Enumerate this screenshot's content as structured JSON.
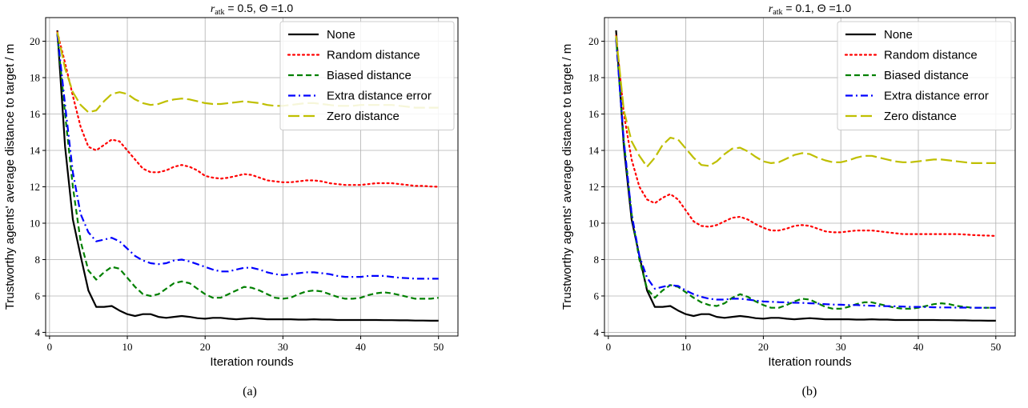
{
  "chart_data": [
    {
      "type": "line",
      "title": "r_atk = 0.5, Θ =1.0",
      "title_parts": {
        "var": "r",
        "sub": "atk",
        "rest": " = 0.5, Θ =1.0"
      },
      "xlabel": "Iteration rounds",
      "ylabel": "Trustworthy agents' average distance to target / m",
      "caption": "(a)",
      "xlim": [
        -0.5,
        52.5
      ],
      "ylim": [
        3.8,
        21.3
      ],
      "xticks": [
        0,
        10,
        20,
        30,
        40,
        50
      ],
      "yticks": [
        4,
        6,
        8,
        10,
        12,
        14,
        16,
        18,
        20
      ],
      "grid": true,
      "legend_position": "top-right",
      "x": [
        1,
        2,
        3,
        4,
        5,
        6,
        7,
        8,
        9,
        10,
        11,
        12,
        13,
        14,
        15,
        16,
        17,
        18,
        19,
        20,
        21,
        22,
        23,
        24,
        25,
        26,
        27,
        28,
        29,
        30,
        31,
        32,
        33,
        34,
        35,
        36,
        37,
        38,
        39,
        40,
        41,
        42,
        43,
        44,
        45,
        46,
        47,
        48,
        49,
        50
      ],
      "series": [
        {
          "name": "None",
          "color": "#000000",
          "dash": "solid",
          "values": [
            20.6,
            14.2,
            10.2,
            8.2,
            6.3,
            5.4,
            5.4,
            5.45,
            5.2,
            5.0,
            4.9,
            5.0,
            5.0,
            4.85,
            4.8,
            4.85,
            4.9,
            4.85,
            4.78,
            4.75,
            4.8,
            4.8,
            4.75,
            4.72,
            4.75,
            4.78,
            4.75,
            4.72,
            4.72,
            4.72,
            4.72,
            4.7,
            4.7,
            4.72,
            4.7,
            4.7,
            4.68,
            4.68,
            4.68,
            4.68,
            4.68,
            4.68,
            4.67,
            4.67,
            4.66,
            4.66,
            4.65,
            4.65,
            4.64,
            4.64
          ]
        },
        {
          "name": "Random distance",
          "color": "#ff0000",
          "dash": "dotted",
          "values": [
            20.5,
            18.8,
            17.0,
            15.3,
            14.2,
            14.0,
            14.3,
            14.6,
            14.5,
            14.0,
            13.5,
            13.0,
            12.8,
            12.8,
            12.9,
            13.1,
            13.2,
            13.1,
            12.9,
            12.6,
            12.5,
            12.45,
            12.5,
            12.6,
            12.7,
            12.65,
            12.5,
            12.35,
            12.3,
            12.25,
            12.25,
            12.3,
            12.35,
            12.35,
            12.3,
            12.2,
            12.15,
            12.1,
            12.1,
            12.1,
            12.15,
            12.2,
            12.2,
            12.2,
            12.15,
            12.1,
            12.05,
            12.05,
            12.02,
            12.0
          ]
        },
        {
          "name": "Biased distance",
          "color": "#008000",
          "dash": "dashed",
          "values": [
            20.4,
            16.0,
            12.0,
            9.0,
            7.4,
            6.9,
            7.3,
            7.6,
            7.5,
            7.0,
            6.5,
            6.1,
            6.0,
            6.1,
            6.4,
            6.7,
            6.8,
            6.7,
            6.4,
            6.1,
            5.9,
            5.9,
            6.1,
            6.3,
            6.5,
            6.45,
            6.3,
            6.1,
            5.9,
            5.85,
            5.9,
            6.1,
            6.25,
            6.3,
            6.25,
            6.1,
            5.95,
            5.85,
            5.85,
            5.9,
            6.05,
            6.15,
            6.2,
            6.15,
            6.05,
            5.95,
            5.85,
            5.85,
            5.85,
            5.9
          ]
        },
        {
          "name": "Extra distance error",
          "color": "#0000ff",
          "dash": "dashdot",
          "values": [
            20.4,
            16.5,
            12.8,
            10.5,
            9.5,
            9.0,
            9.1,
            9.2,
            9.0,
            8.6,
            8.2,
            7.95,
            7.8,
            7.75,
            7.8,
            7.95,
            8.0,
            7.9,
            7.75,
            7.6,
            7.45,
            7.35,
            7.35,
            7.45,
            7.55,
            7.55,
            7.45,
            7.3,
            7.2,
            7.15,
            7.2,
            7.25,
            7.3,
            7.3,
            7.25,
            7.2,
            7.1,
            7.05,
            7.05,
            7.05,
            7.1,
            7.1,
            7.1,
            7.05,
            7.0,
            6.98,
            6.95,
            6.95,
            6.95,
            6.95
          ]
        },
        {
          "name": "Zero distance",
          "color": "#bfbf00",
          "dash": "longdash",
          "values": [
            20.5,
            18.5,
            17.2,
            16.5,
            16.1,
            16.2,
            16.7,
            17.1,
            17.2,
            17.1,
            16.8,
            16.6,
            16.5,
            16.55,
            16.7,
            16.8,
            16.85,
            16.8,
            16.7,
            16.6,
            16.55,
            16.55,
            16.6,
            16.65,
            16.7,
            16.65,
            16.6,
            16.5,
            16.45,
            16.45,
            16.5,
            16.55,
            16.6,
            16.6,
            16.55,
            16.5,
            16.45,
            16.45,
            16.45,
            16.5,
            16.5,
            16.5,
            16.5,
            16.5,
            16.45,
            16.4,
            16.35,
            16.35,
            16.35,
            16.35
          ]
        }
      ]
    },
    {
      "type": "line",
      "title": "r_atk = 0.1, Θ =1.0",
      "title_parts": {
        "var": "r",
        "sub": "atk",
        "rest": " = 0.1, Θ =1.0"
      },
      "xlabel": "Iteration rounds",
      "ylabel": "Trustworthy agents' average distance to target / m",
      "caption": "(b)",
      "xlim": [
        -0.5,
        52.5
      ],
      "ylim": [
        3.8,
        21.3
      ],
      "xticks": [
        0,
        10,
        20,
        30,
        40,
        50
      ],
      "yticks": [
        4,
        6,
        8,
        10,
        12,
        14,
        16,
        18,
        20
      ],
      "grid": true,
      "legend_position": "top-right",
      "x": [
        1,
        2,
        3,
        4,
        5,
        6,
        7,
        8,
        9,
        10,
        11,
        12,
        13,
        14,
        15,
        16,
        17,
        18,
        19,
        20,
        21,
        22,
        23,
        24,
        25,
        26,
        27,
        28,
        29,
        30,
        31,
        32,
        33,
        34,
        35,
        36,
        37,
        38,
        39,
        40,
        41,
        42,
        43,
        44,
        45,
        46,
        47,
        48,
        49,
        50
      ],
      "series": [
        {
          "name": "None",
          "color": "#000000",
          "dash": "solid",
          "values": [
            20.6,
            14.2,
            10.2,
            8.2,
            6.3,
            5.4,
            5.4,
            5.45,
            5.2,
            5.0,
            4.9,
            5.0,
            5.0,
            4.85,
            4.8,
            4.85,
            4.9,
            4.85,
            4.78,
            4.75,
            4.8,
            4.8,
            4.75,
            4.72,
            4.75,
            4.78,
            4.75,
            4.72,
            4.72,
            4.72,
            4.72,
            4.7,
            4.7,
            4.72,
            4.7,
            4.7,
            4.68,
            4.68,
            4.68,
            4.68,
            4.68,
            4.68,
            4.67,
            4.67,
            4.66,
            4.66,
            4.65,
            4.65,
            4.64,
            4.64
          ]
        },
        {
          "name": "Random distance",
          "color": "#ff0000",
          "dash": "dotted",
          "values": [
            20.3,
            16.0,
            13.5,
            12.0,
            11.3,
            11.1,
            11.4,
            11.6,
            11.3,
            10.7,
            10.1,
            9.85,
            9.8,
            9.9,
            10.1,
            10.3,
            10.35,
            10.2,
            9.95,
            9.75,
            9.6,
            9.6,
            9.7,
            9.85,
            9.9,
            9.85,
            9.7,
            9.55,
            9.5,
            9.5,
            9.55,
            9.6,
            9.6,
            9.6,
            9.55,
            9.5,
            9.45,
            9.4,
            9.4,
            9.4,
            9.4,
            9.4,
            9.4,
            9.4,
            9.4,
            9.38,
            9.35,
            9.33,
            9.32,
            9.3
          ]
        },
        {
          "name": "Biased distance",
          "color": "#008000",
          "dash": "dashed",
          "values": [
            20.2,
            14.5,
            10.5,
            8.0,
            6.4,
            5.9,
            6.3,
            6.6,
            6.5,
            6.2,
            5.9,
            5.65,
            5.5,
            5.45,
            5.6,
            5.9,
            6.1,
            5.95,
            5.7,
            5.5,
            5.35,
            5.35,
            5.5,
            5.7,
            5.85,
            5.8,
            5.6,
            5.4,
            5.3,
            5.3,
            5.4,
            5.55,
            5.65,
            5.65,
            5.55,
            5.45,
            5.35,
            5.3,
            5.3,
            5.35,
            5.45,
            5.55,
            5.6,
            5.55,
            5.45,
            5.4,
            5.35,
            5.35,
            5.35,
            5.35
          ]
        },
        {
          "name": "Extra distance error",
          "color": "#0000ff",
          "dash": "dashdot",
          "values": [
            20.1,
            14.5,
            10.5,
            8.2,
            7.0,
            6.4,
            6.5,
            6.6,
            6.55,
            6.3,
            6.1,
            5.95,
            5.85,
            5.8,
            5.8,
            5.85,
            5.85,
            5.8,
            5.75,
            5.7,
            5.68,
            5.66,
            5.65,
            5.63,
            5.62,
            5.6,
            5.58,
            5.55,
            5.53,
            5.52,
            5.5,
            5.5,
            5.48,
            5.46,
            5.45,
            5.44,
            5.43,
            5.42,
            5.4,
            5.4,
            5.39,
            5.38,
            5.37,
            5.37,
            5.36,
            5.36,
            5.35,
            5.35,
            5.35,
            5.35
          ]
        },
        {
          "name": "Zero distance",
          "color": "#bfbf00",
          "dash": "longdash",
          "values": [
            20.3,
            16.2,
            14.5,
            13.7,
            13.1,
            13.6,
            14.3,
            14.7,
            14.6,
            14.1,
            13.6,
            13.2,
            13.15,
            13.4,
            13.8,
            14.1,
            14.15,
            13.95,
            13.65,
            13.4,
            13.3,
            13.35,
            13.55,
            13.75,
            13.85,
            13.8,
            13.6,
            13.45,
            13.35,
            13.35,
            13.45,
            13.6,
            13.7,
            13.7,
            13.6,
            13.5,
            13.4,
            13.35,
            13.35,
            13.4,
            13.45,
            13.5,
            13.5,
            13.45,
            13.4,
            13.35,
            13.3,
            13.3,
            13.3,
            13.3
          ]
        }
      ]
    }
  ]
}
